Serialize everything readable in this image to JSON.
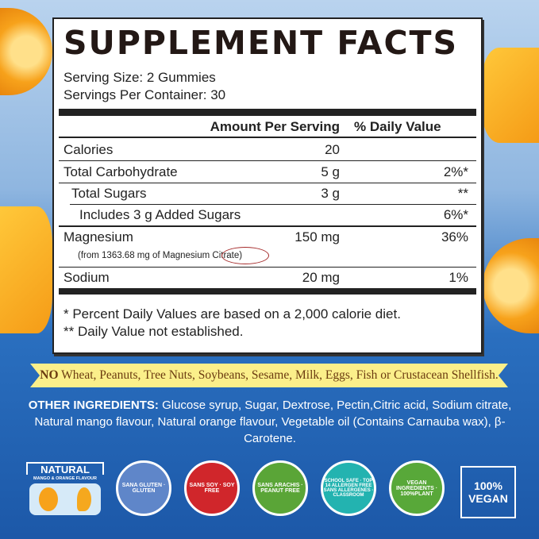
{
  "title": "SUPPLEMENT FACTS",
  "serving_size": "Serving Size: 2 Gummies",
  "servings_per_container": "Servings Per Container: 30",
  "header": {
    "amount": "Amount Per Serving",
    "dv": "% Daily Value"
  },
  "rows": [
    {
      "name": "Calories",
      "amount": "20",
      "dv": ""
    },
    {
      "name": "Total Carbohydrate",
      "amount": "5 g",
      "dv": "2%*"
    },
    {
      "name": "Total Sugars",
      "amount": "3 g",
      "dv": "**"
    },
    {
      "name": "Includes 3 g Added Sugars",
      "amount": "",
      "dv": "6%*"
    },
    {
      "name": "Magnesium",
      "amount": "150 mg",
      "dv": "36%",
      "sub": "(from 1363.68 mg of Magnesium Citrate)"
    },
    {
      "name": "Sodium",
      "amount": "20 mg",
      "dv": "1%"
    }
  ],
  "footnotes": [
    "* Percent Daily Values are based on a 2,000 calorie diet.",
    "** Daily Value not established."
  ],
  "allergen_banner": {
    "no": "NO",
    "text": " Wheat, Peanuts, Tree Nuts, Soybeans, Sesame, Milk, Eggs, Fish or Crustacean Shellfish."
  },
  "ingredients": {
    "label": "OTHER INGREDIENTS:",
    "text": " Glucose syrup, Sugar, Dextrose, Pectin,Citric acid, Sodium citrate, Natural mango flavour, Natural orange flavour, Vegetable oil (Contains Carnauba wax), β-Carotene."
  },
  "badges": [
    {
      "name": "natural",
      "title": "NATURAL",
      "sub": "MANGO & ORANGE FLAVOUR"
    },
    {
      "name": "gluten",
      "text": "SANA GLUTEN · GLUTEN",
      "color": "#5f86c9"
    },
    {
      "name": "soy",
      "text": "SANS SOY · SOY FREE",
      "color": "#d0262b"
    },
    {
      "name": "peanut",
      "text": "SANS ARACHIS · PEANUT FREE",
      "color": "#5aa537"
    },
    {
      "name": "allergen",
      "text": "SCHOOL SAFE · TOP 14 ALLERGEN FREE SANS ALLERGENES · CLASSROOM",
      "color": "#23b3b0"
    },
    {
      "name": "vegan-ingredients",
      "text": "VEGAN INGREDIENTS · 100%PLANT",
      "color": "#58a839"
    },
    {
      "name": "vegan",
      "text": "100% VEGAN"
    }
  ]
}
